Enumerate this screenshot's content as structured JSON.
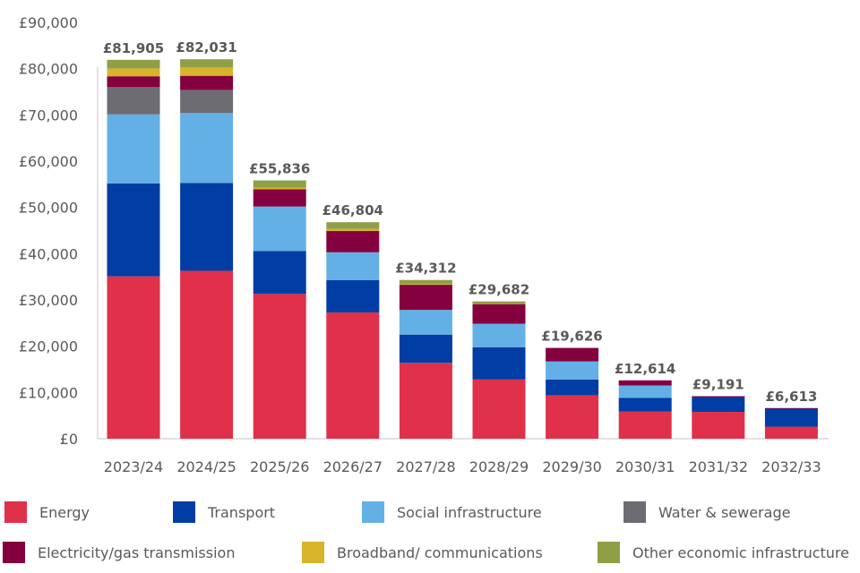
{
  "chart_data": {
    "type": "bar",
    "stacked": true,
    "title": "",
    "xlabel": "",
    "ylabel": "",
    "ylim": [
      0,
      90000
    ],
    "yticks": [
      0,
      10000,
      20000,
      30000,
      40000,
      50000,
      60000,
      70000,
      80000,
      90000
    ],
    "ytick_labels": [
      "£0",
      "£10,000",
      "£20,000",
      "£30,000",
      "£40,000",
      "£50,000",
      "£60,000",
      "£70,000",
      "£80,000",
      "£90,000"
    ],
    "grid": false,
    "legend_position": "bottom",
    "categories": [
      "2023/24",
      "2024/25",
      "2025/26",
      "2026/27",
      "2027/28",
      "2028/29",
      "2029/30",
      "2030/31",
      "2031/32",
      "2032/33"
    ],
    "totals": [
      81905,
      82031,
      55836,
      46804,
      34312,
      29682,
      19626,
      12614,
      9191,
      6613
    ],
    "total_labels": [
      "£81,905",
      "£82,031",
      "£55,836",
      "£46,804",
      "£34,312",
      "£29,682",
      "£19,626",
      "£12,614",
      "£9,191",
      "£6,613"
    ],
    "series": [
      {
        "name": "Energy",
        "color": "#e0304a",
        "values": [
          35100,
          36300,
          31300,
          27300,
          16400,
          12800,
          9400,
          5900,
          5800,
          2600
        ]
      },
      {
        "name": "Transport",
        "color": "#003da5",
        "values": [
          20100,
          19000,
          9250,
          7000,
          6100,
          6950,
          3400,
          2950,
          3200,
          4000
        ]
      },
      {
        "name": "Social infrastructure",
        "color": "#62b0e6",
        "values": [
          14900,
          15100,
          9650,
          6000,
          5350,
          5100,
          3900,
          2650,
          0,
          0
        ]
      },
      {
        "name": "Water & sewerage",
        "color": "#6e6c73",
        "values": [
          5900,
          5000,
          0,
          0,
          0,
          0,
          0,
          0,
          0,
          0
        ]
      },
      {
        "name": "Electricity/gas transmission",
        "color": "#85003f",
        "values": [
          2350,
          3050,
          3700,
          4600,
          5460,
          4232,
          2926,
          1114,
          191,
          13
        ]
      },
      {
        "name": "Broadband/ communications",
        "color": "#d8b42a",
        "values": [
          1700,
          1800,
          350,
          450,
          102,
          0,
          0,
          0,
          0,
          0
        ]
      },
      {
        "name": "Other economic infrastructure",
        "color": "#8f9f46",
        "values": [
          1855,
          1781,
          1586,
          1454,
          900,
          600,
          0,
          0,
          0,
          0
        ]
      }
    ]
  }
}
